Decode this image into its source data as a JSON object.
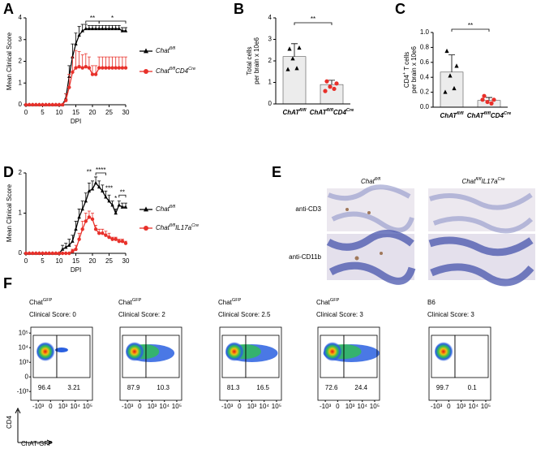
{
  "chart_data": [
    {
      "type": "line",
      "label": "A",
      "x": [
        0,
        1,
        2,
        3,
        4,
        5,
        6,
        7,
        8,
        9,
        10,
        11,
        12,
        13,
        14,
        15,
        16,
        17,
        18,
        19,
        20,
        21,
        22,
        23,
        24,
        25,
        26,
        27,
        28,
        29,
        30
      ],
      "xlim": [
        0,
        30
      ],
      "xticks": [
        0,
        5,
        10,
        15,
        20,
        25,
        30
      ],
      "ylim": [
        0,
        4
      ],
      "yticks": [
        0,
        1,
        2,
        3,
        4
      ],
      "xlabel": "DPI",
      "ylabel": "Mean Clinical Score",
      "series": [
        {
          "name": [
            "Chat",
            "fl/fl"
          ],
          "color": "#000000",
          "marker": "triangle",
          "values": [
            0,
            0,
            0,
            0,
            0,
            0,
            0,
            0,
            0,
            0,
            0,
            0,
            0.3,
            1.3,
            2.2,
            2.8,
            3.2,
            3.4,
            3.5,
            3.5,
            3.5,
            3.5,
            3.5,
            3.5,
            3.5,
            3.5,
            3.5,
            3.5,
            3.5,
            3.4,
            3.4
          ],
          "errors": [
            0,
            0,
            0,
            0,
            0,
            0,
            0,
            0,
            0,
            0,
            0,
            0,
            0.2,
            0.5,
            0.6,
            0.5,
            0.4,
            0.3,
            0.2,
            0.15,
            0.15,
            0.15,
            0.15,
            0.15,
            0.15,
            0.15,
            0.15,
            0.15,
            0.15,
            0.15,
            0.15
          ]
        },
        {
          "name": [
            "Chat",
            "fl/fl",
            "CD4",
            "Cre"
          ],
          "color": "#e8302a",
          "marker": "circle",
          "values": [
            0,
            0,
            0,
            0,
            0,
            0,
            0,
            0,
            0,
            0,
            0,
            0,
            0.2,
            0.8,
            1.5,
            1.7,
            1.75,
            1.7,
            1.75,
            1.7,
            1.4,
            1.4,
            1.7,
            1.7,
            1.7,
            1.7,
            1.7,
            1.7,
            1.7,
            1.7,
            1.7
          ],
          "errors": [
            0,
            0,
            0,
            0,
            0,
            0,
            0,
            0,
            0,
            0,
            0,
            0,
            0.3,
            0.6,
            0.7,
            0.8,
            0.7,
            0.6,
            0.6,
            0.5,
            0.4,
            0.4,
            0.5,
            0.5,
            0.5,
            0.5,
            0.5,
            0.5,
            0.5,
            0.5,
            0.5
          ]
        }
      ],
      "annotations": [
        "**",
        "*"
      ]
    },
    {
      "type": "bar",
      "label": "B",
      "categories": [
        [
          "ChAT",
          "fl/fl"
        ],
        [
          "ChAT",
          "fl/fl",
          "CD4",
          "Cre"
        ]
      ],
      "values": [
        2.2,
        0.9
      ],
      "errors": [
        0.6,
        0.2
      ],
      "points": [
        [
          2.55,
          2.6,
          2.1,
          1.65,
          1.6
        ],
        [
          1.05,
          0.95,
          0.8,
          0.7,
          0.6
        ]
      ],
      "colors": [
        "#000000",
        "#e8302a"
      ],
      "markers": [
        "triangle",
        "circle"
      ],
      "bar_color": "#ececec",
      "ylim": [
        0,
        4
      ],
      "yticks": [
        0,
        1,
        2,
        3,
        4
      ],
      "ylabel": [
        [
          "Total cells"
        ],
        [
          "per brain x 10e6"
        ]
      ],
      "annotations": [
        "**"
      ]
    },
    {
      "type": "bar",
      "label": "C",
      "categories": [
        [
          "ChAT",
          "fl/fl"
        ],
        [
          "ChAT",
          "fl/fl",
          "CD4",
          "Cre"
        ]
      ],
      "values": [
        0.47,
        0.09
      ],
      "errors": [
        0.23,
        0.04
      ],
      "points": [
        [
          0.75,
          0.55,
          0.42,
          0.25,
          0.2
        ],
        [
          0.15,
          0.1,
          0.07,
          0.05,
          0.1
        ]
      ],
      "colors": [
        "#000000",
        "#e8302a"
      ],
      "markers": [
        "triangle",
        "circle"
      ],
      "bar_color": "#ececec",
      "ylim": [
        0,
        1
      ],
      "yticks": [
        {
          "value": 0,
          "label": "0.0"
        },
        0.2,
        0.4,
        0.6,
        0.8,
        {
          "value": 1,
          "label": "1.0"
        }
      ],
      "ylabel": [
        [
          "CD4",
          "+",
          " T cells"
        ],
        [
          "per brain x 10e6"
        ]
      ],
      "annotations": [
        "**"
      ]
    },
    {
      "type": "line",
      "label": "D",
      "x": [
        0,
        1,
        2,
        3,
        4,
        5,
        6,
        7,
        8,
        9,
        10,
        11,
        12,
        13,
        14,
        15,
        16,
        17,
        18,
        19,
        20,
        21,
        22,
        23,
        24,
        25,
        26,
        27,
        28,
        29,
        30
      ],
      "xlim": [
        0,
        30
      ],
      "xticks": [
        0,
        5,
        10,
        15,
        20,
        25,
        30
      ],
      "ylim": [
        0,
        2
      ],
      "yticks": [
        0,
        1,
        2
      ],
      "xlabel": "DPI",
      "ylabel": "Mean Clinical Score",
      "series": [
        {
          "name": [
            "Chat",
            "fl/fl"
          ],
          "color": "#000000",
          "marker": "triangle",
          "values": [
            0,
            0,
            0,
            0,
            0,
            0,
            0,
            0,
            0,
            0,
            0,
            0.1,
            0.15,
            0.2,
            0.3,
            0.6,
            0.9,
            1.1,
            1.3,
            1.55,
            1.6,
            1.75,
            1.65,
            1.55,
            1.4,
            1.3,
            1.2,
            1.0,
            1.2,
            1.15,
            1.15
          ],
          "errors": [
            0,
            0,
            0,
            0,
            0,
            0,
            0,
            0,
            0,
            0,
            0,
            0.1,
            0.1,
            0.15,
            0.15,
            0.2,
            0.2,
            0.2,
            0.2,
            0.2,
            0.2,
            0.15,
            0.15,
            0.15,
            0.15,
            0.15,
            0.1,
            0.1,
            0.1,
            0.1,
            0.1
          ]
        },
        {
          "name": [
            "Chat",
            "fl/fl",
            "IL17a",
            "Cre"
          ],
          "color": "#e8302a",
          "marker": "circle",
          "values": [
            0,
            0,
            0,
            0,
            0,
            0,
            0,
            0,
            0,
            0,
            0,
            0,
            0,
            0,
            0.05,
            0.1,
            0.35,
            0.6,
            0.8,
            0.9,
            0.85,
            0.6,
            0.5,
            0.5,
            0.45,
            0.4,
            0.35,
            0.35,
            0.3,
            0.3,
            0.25
          ],
          "errors": [
            0,
            0,
            0,
            0,
            0,
            0,
            0,
            0,
            0,
            0,
            0,
            0,
            0,
            0,
            0.05,
            0.1,
            0.15,
            0.2,
            0.2,
            0.15,
            0.15,
            0.1,
            0.1,
            0.1,
            0.1,
            0.1,
            0.05,
            0.05,
            0.05,
            0.05,
            0.05
          ]
        }
      ],
      "annotations": [
        "**",
        "****",
        "***",
        "*",
        "**"
      ]
    }
  ],
  "histology": {
    "label": "E",
    "columns": [
      [
        "Chat",
        "fl/fl"
      ],
      [
        "Chat",
        "fl/fl",
        "IL17a",
        "Cre"
      ]
    ],
    "rows": [
      "anti-CD3",
      "anti-CD11b"
    ]
  },
  "flow": {
    "label": "F",
    "ylabel": "CD4",
    "xlabel": "ChAT-GFP",
    "xticks": [
      {
        "value": -1000,
        "label": "-10³"
      },
      0,
      {
        "value": 1000,
        "label": "10³"
      },
      {
        "value": 10000,
        "label": "10⁴"
      },
      {
        "value": 100000,
        "label": "10⁵"
      }
    ],
    "yticks": [
      {
        "value": -1000,
        "label": "-10³"
      },
      0,
      {
        "value": 1000,
        "label": "10³"
      },
      {
        "value": 10000,
        "label": "10⁴"
      },
      {
        "value": 100000,
        "label": "10⁵"
      }
    ],
    "plots": [
      {
        "title": [
          "Chat",
          "GFP"
        ],
        "subtitle": "Clinical Score: 0",
        "gates": [
          96.4,
          3.21
        ]
      },
      {
        "title": [
          "Chat",
          "GFP"
        ],
        "subtitle": "Clinical Score: 2",
        "gates": [
          87.9,
          10.3
        ]
      },
      {
        "title": [
          "Chat",
          "GFP"
        ],
        "subtitle": "Clinical Score: 2.5",
        "gates": [
          81.3,
          16.5
        ]
      },
      {
        "title": [
          "Chat",
          "GFP"
        ],
        "subtitle": "Clinical Score: 3",
        "gates": [
          72.6,
          24.4
        ]
      },
      {
        "title": [
          "B6"
        ],
        "subtitle": "Clinical Score: 3",
        "gates": [
          99.7,
          0.1
        ]
      }
    ]
  }
}
